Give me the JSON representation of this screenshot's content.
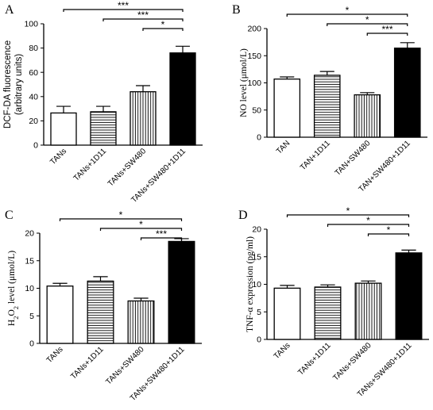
{
  "chart_data": [
    {
      "panel": "A",
      "type": "bar",
      "ylabel": "DCF-DA fluorescence\n(arbitrary units)",
      "ylabel_font": "sans",
      "ylim": [
        0,
        100
      ],
      "yticks": [
        0,
        20,
        40,
        60,
        80,
        100
      ],
      "categories": [
        "TANs",
        "TANs+1D11",
        "TANs+SW480",
        "TANs+SW480+1D11"
      ],
      "values": [
        26.5,
        27.5,
        44,
        76
      ],
      "errors": [
        5.5,
        4.5,
        5,
        5.5
      ],
      "fills": [
        "white",
        "hlines",
        "vlines",
        "black"
      ],
      "comparisons": [
        {
          "from": 0,
          "to": 3,
          "label": "***"
        },
        {
          "from": 1,
          "to": 3,
          "label": "***"
        },
        {
          "from": 2,
          "to": 3,
          "label": "*"
        }
      ]
    },
    {
      "panel": "B",
      "type": "bar",
      "ylabel": "NO level (μmol/L)",
      "ylabel_font": "serif",
      "ylim": [
        0,
        200
      ],
      "yticks": [
        0,
        50,
        100,
        150,
        200
      ],
      "categories": [
        "TAN",
        "TAN+1D11",
        "TAN+SW480",
        "TAN+SW480+1D11"
      ],
      "values": [
        107,
        114,
        78,
        164
      ],
      "errors": [
        4,
        7,
        4,
        10
      ],
      "fills": [
        "white",
        "hlines",
        "vlines",
        "black"
      ],
      "comparisons": [
        {
          "from": 0,
          "to": 3,
          "label": "*"
        },
        {
          "from": 1,
          "to": 3,
          "label": "*"
        },
        {
          "from": 2,
          "to": 3,
          "label": "***"
        }
      ]
    },
    {
      "panel": "C",
      "type": "bar",
      "ylabel": "H2O2 level (μmol/L)",
      "ylabel_font": "serif",
      "ylim": [
        0,
        20
      ],
      "yticks": [
        0,
        5,
        10,
        15,
        20
      ],
      "categories": [
        "TANs",
        "TANs+1D11",
        "TANs+SW480",
        "TANs+SW480+1D11"
      ],
      "values": [
        10.4,
        11.3,
        7.7,
        18.5
      ],
      "errors": [
        0.5,
        0.8,
        0.5,
        0.5
      ],
      "fills": [
        "white",
        "hlines",
        "vlines",
        "black"
      ],
      "comparisons": [
        {
          "from": 0,
          "to": 3,
          "label": "*"
        },
        {
          "from": 1,
          "to": 3,
          "label": "*"
        },
        {
          "from": 2,
          "to": 3,
          "label": "***"
        }
      ]
    },
    {
      "panel": "D",
      "type": "bar",
      "ylabel": "TNF-α expression (pg/ml)",
      "ylabel_font": "serif",
      "ylim": [
        0,
        20
      ],
      "yticks": [
        0,
        5,
        10,
        15,
        20
      ],
      "categories": [
        "TANs",
        "TANs+1D11",
        "TANs+SW480",
        "TANs+SW480+1D11"
      ],
      "values": [
        9.3,
        9.5,
        10.2,
        15.7
      ],
      "errors": [
        0.5,
        0.4,
        0.4,
        0.5
      ],
      "fills": [
        "white",
        "hlines",
        "vlines",
        "black"
      ],
      "comparisons": [
        {
          "from": 0,
          "to": 3,
          "label": "*"
        },
        {
          "from": 1,
          "to": 3,
          "label": "*"
        },
        {
          "from": 2,
          "to": 3,
          "label": "*"
        }
      ]
    }
  ]
}
